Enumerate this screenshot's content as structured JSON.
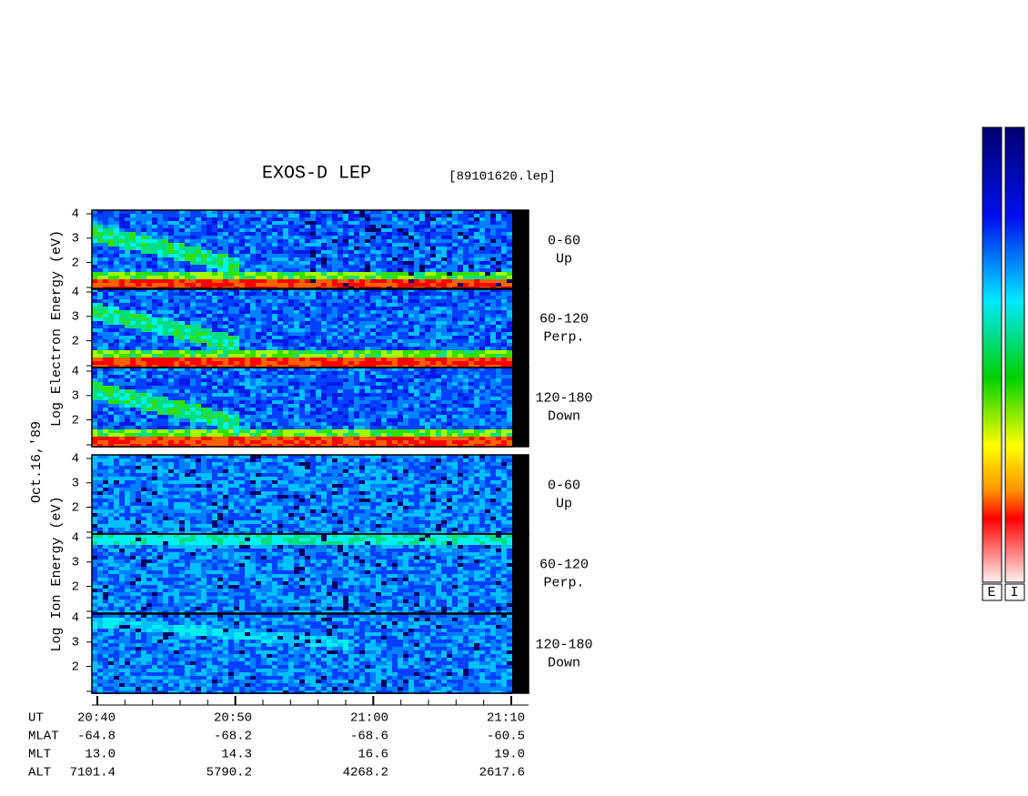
{
  "chart_data": {
    "type": "spectrogram",
    "title": "EXOS-D LEP",
    "file": "[89101620.lep]",
    "date": "Oct.16,'89",
    "groups": [
      {
        "ylabel": "Log  Electron  Energy (eV)",
        "panels": [
          {
            "angle": "0-60",
            "direction": "Up"
          },
          {
            "angle": "60-120",
            "direction": "Perp."
          },
          {
            "angle": "120-180",
            "direction": "Down"
          }
        ]
      },
      {
        "ylabel": "Log  Ion  Energy (eV)",
        "panels": [
          {
            "angle": "0-60",
            "direction": "Up"
          },
          {
            "angle": "60-120",
            "direction": "Perp."
          },
          {
            "angle": "120-180",
            "direction": "Down"
          }
        ]
      }
    ],
    "ylim": [
      0.9,
      4.15
    ],
    "yticks": [
      2,
      3,
      4
    ],
    "ephemeris": [
      {
        "name": "UT",
        "values": [
          "20:40",
          "20:50",
          "21:00",
          "21:10"
        ]
      },
      {
        "name": "MLAT",
        "values": [
          "-64.8",
          "-68.2",
          "-68.6",
          "-60.5"
        ]
      },
      {
        "name": "MLT",
        "values": [
          "13.0",
          "14.3",
          "16.6",
          "19.0"
        ]
      },
      {
        "name": "ALT",
        "values": [
          "7101.4",
          "5790.2",
          "4268.2",
          "2617.6"
        ]
      }
    ],
    "colorbar": {
      "labels": [
        "E",
        "I"
      ]
    }
  }
}
